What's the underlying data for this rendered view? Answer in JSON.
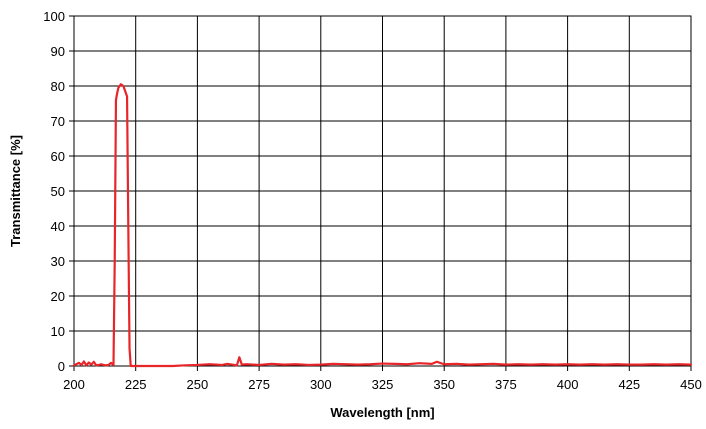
{
  "chart_data": {
    "type": "line",
    "xlabel": "Wavelength [nm]",
    "ylabel": "Transmittance [%]",
    "xlim": [
      200,
      450
    ],
    "ylim": [
      0,
      100
    ],
    "x_ticks": [
      200,
      225,
      250,
      275,
      300,
      325,
      350,
      375,
      400,
      425,
      450
    ],
    "y_ticks": [
      0,
      10,
      20,
      30,
      40,
      50,
      60,
      70,
      80,
      90,
      100
    ],
    "grid": true,
    "legend": "none",
    "series": [
      {
        "color": "#e8262a",
        "x": [
          200,
          202,
          203,
          204,
          205,
          206,
          207,
          208,
          209,
          210,
          211,
          212,
          213,
          214,
          215,
          216,
          216.5,
          217,
          217.5,
          218,
          219,
          220,
          221,
          221.5,
          222,
          222.5,
          223,
          224,
          225,
          230,
          235,
          240,
          245,
          250,
          255,
          260,
          262,
          265,
          266,
          267,
          268,
          270,
          275,
          280,
          285,
          290,
          295,
          300,
          305,
          310,
          315,
          320,
          325,
          330,
          335,
          340,
          345,
          347,
          350,
          355,
          360,
          365,
          370,
          375,
          380,
          385,
          390,
          395,
          400,
          405,
          410,
          415,
          420,
          425,
          430,
          435,
          440,
          445,
          450
        ],
        "y": [
          0.2,
          0.9,
          0.3,
          1.3,
          0.2,
          1.0,
          0.4,
          1.2,
          0.2,
          0.3,
          0.5,
          0.3,
          0.2,
          0.3,
          0.9,
          0.3,
          30,
          76,
          78,
          79.5,
          80.5,
          80,
          78,
          77,
          40,
          5,
          0,
          0,
          0,
          0,
          0,
          0,
          0.2,
          0.3,
          0.5,
          0.3,
          0.6,
          0.3,
          0.2,
          2.5,
          0.4,
          0.5,
          0.3,
          0.6,
          0.4,
          0.5,
          0.3,
          0.4,
          0.6,
          0.5,
          0.4,
          0.5,
          0.7,
          0.6,
          0.5,
          0.8,
          0.6,
          1.2,
          0.5,
          0.6,
          0.4,
          0.5,
          0.6,
          0.4,
          0.5,
          0.4,
          0.5,
          0.4,
          0.5,
          0.4,
          0.5,
          0.4,
          0.5,
          0.4,
          0.4,
          0.5,
          0.4,
          0.5,
          0.4
        ]
      }
    ]
  }
}
